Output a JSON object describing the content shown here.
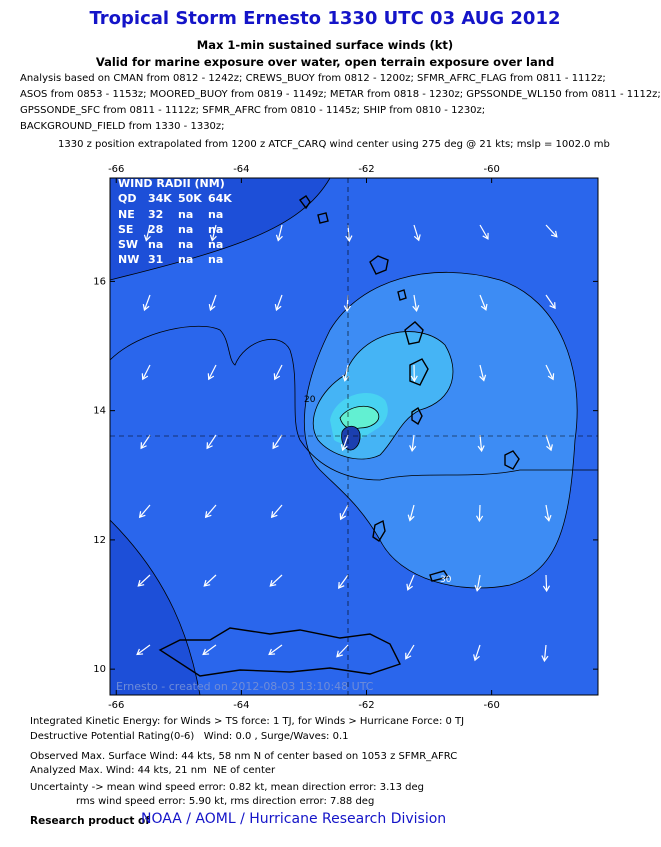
{
  "header": {
    "title": "Tropical Storm Ernesto 1330 UTC 03 AUG 2012",
    "subtitle": "Max 1-min sustained surface winds (kt)",
    "exposure": "Valid for marine exposure over water, open terrain exposure over land",
    "analysis": [
      "Analysis based on CMAN from 0812 - 1242z; CREWS_BUOY from 0812 - 1200z; SFMR_AFRC_FLAG from 0811 - 1112z;",
      "ASOS from 0853 - 1153z; MOORED_BUOY from 0819 - 1149z; METAR from 0818 - 1230z; GPSSONDE_WL150 from 0811 - 1112z;",
      "GPSSONDE_SFC from 0811 - 1112z; SFMR_AFRC from 0810 - 1145z; SHIP from 0810 - 1230z;",
      "BACKGROUND_FIELD from 1330 - 1330z;"
    ],
    "position": "1330 z position extrapolated from 1200 z ATCF_CARQ wind center using 275 deg @ 21 kts; mslp = 1002.0 mb"
  },
  "map": {
    "xlim": [
      -66.1,
      -58.3
    ],
    "ylim": [
      9.6,
      17.6
    ],
    "xticks": [
      -66,
      -64,
      -62,
      -60
    ],
    "yticks": [
      10,
      12,
      14,
      16
    ],
    "contour_labels": [
      "20",
      "30"
    ],
    "wind_radii": {
      "title": "WIND RADII (NM)",
      "header": [
        "QD",
        "34K",
        "50K",
        "64K"
      ],
      "rows": [
        [
          "NE",
          "32",
          "na",
          "na"
        ],
        [
          "SE",
          "28",
          "na",
          "na"
        ],
        [
          "SW",
          "na",
          "na",
          "na"
        ],
        [
          "NW",
          "31",
          "na",
          "na"
        ]
      ]
    },
    "credit": "Ernesto - created on 2012-08-03 13:10:48 UTC"
  },
  "footer": {
    "lines": [
      "Integrated Kinetic Energy: for Winds > TS force: 1 TJ, for Winds > Hurricane Force: 0 TJ",
      "Destructive Potential Rating(0-6)   Wind: 0.0 , Surge/Waves: 0.1",
      "Observed Max. Surface Wind: 44 kts, 58 nm N of center based on 1053 z SFMR_AFRC",
      "Analyzed Max. Wind: 44 kts, 21 nm  NE of center",
      "Uncertainty -> mean wind speed error: 0.82 kt, mean direction error: 3.13 deg",
      "rms wind speed error: 5.90 kt, rms direction error: 7.88 deg"
    ],
    "product_label": "Research product of",
    "product_org": "NOAA / AOML / Hurricane Research Division"
  }
}
